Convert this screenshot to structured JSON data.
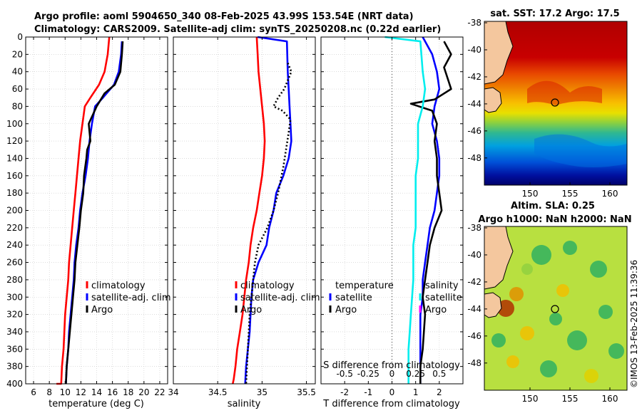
{
  "title": {
    "line1": "Argo profile: aoml 5904650_340 08-Feb-2025 43.99S 153.54E (NRT data)",
    "line2": "Climatology: CARS2009. Satellite-adj clim: synTS_20250208.nc (0.22d earlier)"
  },
  "copyright": "©IMOS 13-Feb-2025 11:39:36",
  "colors": {
    "climatology": "#ff0000",
    "satellite": "#0000ff",
    "argo": "#000000",
    "sat_s_diff": "#00eeee",
    "argo_s_diff": "#ff00ff",
    "land": "#f4c79e"
  },
  "legends": {
    "temp_panel": [
      "climatology",
      "satellite-adj. clim",
      "Argo"
    ],
    "sal_panel": [
      "climatology",
      "satellite-adj. clim",
      "Argo"
    ],
    "diff_left_header": "temperature",
    "diff_left": [
      "satellite",
      "Argo"
    ],
    "diff_right_header": "salinity",
    "diff_right": [
      "satellite",
      "Argo"
    ]
  },
  "map_sst": {
    "title": "sat. SST: 17.2 Argo: 17.5",
    "xticks": [
      "150",
      "155",
      "160"
    ],
    "yticks": [
      "-38",
      "-40",
      "-42",
      "-44",
      "-46",
      "-48"
    ]
  },
  "map_sla": {
    "title1": "Altim. SLA: 0.25",
    "title2": "Argo h1000: NaN h2000: NaN",
    "xticks": [
      "150",
      "155",
      "160"
    ],
    "yticks": [
      "-38",
      "-40",
      "-42",
      "-44",
      "-46",
      "-48"
    ]
  },
  "chart_data": [
    {
      "type": "line",
      "id": "temperature_profile",
      "xlabel": "temperature (deg C)",
      "ylabel": "",
      "xlim": [
        5,
        23
      ],
      "ylim": [
        0,
        400
      ],
      "xticks": [
        6,
        8,
        10,
        12,
        14,
        16,
        18,
        20,
        22
      ],
      "yticks": [
        0,
        20,
        40,
        60,
        80,
        100,
        120,
        140,
        160,
        180,
        200,
        220,
        240,
        260,
        280,
        300,
        320,
        340,
        360,
        380,
        400
      ],
      "y_reversed": true,
      "series": [
        {
          "name": "climatology",
          "color": "#ff0000",
          "x": [
            15.6,
            15.4,
            15.0,
            14.3,
            13.2,
            12.5,
            12.2,
            11.9,
            11.7,
            11.5,
            11.3,
            11.1,
            10.9,
            10.7,
            10.5,
            10.4,
            10.2,
            10.0,
            9.9,
            9.8,
            9.6,
            9.5,
            9.3,
            9.1,
            8.9
          ],
          "y": [
            0,
            20,
            40,
            55,
            70,
            80,
            100,
            120,
            140,
            160,
            180,
            200,
            220,
            240,
            260,
            280,
            300,
            320,
            340,
            360,
            380,
            400,
            400,
            400,
            400
          ]
        },
        {
          "name": "satellite-adj. clim",
          "color": "#0000ff",
          "x": [
            17.2,
            17.1,
            16.8,
            16.2,
            14.8,
            13.8,
            13.4,
            13.1,
            12.9,
            12.6,
            12.2,
            11.9,
            11.7,
            11.4,
            11.2,
            11.1,
            10.9,
            10.7,
            10.5,
            10.4,
            10.2,
            10.1
          ],
          "y": [
            5,
            20,
            40,
            55,
            70,
            80,
            100,
            120,
            140,
            160,
            180,
            200,
            220,
            240,
            260,
            280,
            300,
            320,
            340,
            360,
            380,
            400
          ]
        },
        {
          "name": "Argo",
          "color": "#000000",
          "x": [
            17.3,
            17.2,
            17.0,
            16.3,
            15.0,
            14.0,
            13.0,
            13.2,
            12.8,
            12.7,
            12.4,
            12.3,
            12.0,
            11.8,
            11.3,
            11.2,
            11.0,
            10.8,
            10.6,
            10.4,
            10.2,
            10.1
          ],
          "y": [
            5,
            20,
            40,
            55,
            65,
            80,
            100,
            120,
            130,
            140,
            160,
            180,
            200,
            220,
            260,
            280,
            300,
            320,
            340,
            360,
            380,
            400
          ]
        }
      ]
    },
    {
      "type": "line",
      "id": "salinity_profile",
      "xlabel": "salinity",
      "ylabel": "",
      "xlim": [
        34,
        35.6
      ],
      "ylim": [
        0,
        400
      ],
      "xticks": [
        34,
        34.5,
        35,
        35.5
      ],
      "y_reversed": true,
      "series": [
        {
          "name": "climatology",
          "color": "#ff0000",
          "x": [
            34.94,
            34.95,
            34.96,
            34.98,
            35.0,
            35.02,
            35.03,
            35.02,
            35.0,
            34.97,
            34.94,
            34.9,
            34.87,
            34.85,
            34.82,
            34.8,
            34.78,
            34.75,
            34.72,
            34.7,
            34.68,
            34.67
          ],
          "y": [
            0,
            20,
            40,
            60,
            80,
            100,
            120,
            140,
            160,
            180,
            200,
            220,
            240,
            260,
            280,
            300,
            320,
            340,
            360,
            380,
            395,
            400
          ]
        },
        {
          "name": "satellite-adj. clim",
          "color": "#0000ff",
          "x": [
            34.95,
            35.28,
            35.29,
            35.3,
            35.31,
            35.32,
            35.33,
            35.3,
            35.24,
            35.16,
            35.13,
            35.08,
            35.05,
            34.96,
            34.9,
            34.88,
            34.87,
            34.86,
            34.84,
            34.82,
            34.81
          ],
          "y": [
            0,
            5,
            40,
            60,
            80,
            100,
            120,
            140,
            160,
            180,
            200,
            220,
            240,
            260,
            280,
            300,
            320,
            340,
            360,
            380,
            400
          ]
        },
        {
          "name": "Argo",
          "color": "#000000",
          "dash": "dotted",
          "x": [
            35.29,
            35.33,
            35.29,
            35.25,
            35.18,
            35.13,
            35.23,
            35.32,
            35.3,
            35.24,
            35.18,
            35.13,
            35.06,
            34.96,
            34.92,
            34.9,
            34.88,
            34.86,
            34.84,
            34.82
          ],
          "y": [
            30,
            40,
            50,
            60,
            70,
            80,
            85,
            95,
            110,
            150,
            180,
            200,
            220,
            240,
            260,
            280,
            300,
            320,
            360,
            400
          ]
        }
      ]
    },
    {
      "type": "line",
      "id": "difference_profile",
      "xlabel": "T difference from climatology",
      "top_xlabel": "S difference from climatology",
      "xlim": [
        -3,
        3
      ],
      "ylim": [
        0,
        400
      ],
      "xticks": [
        -2,
        -1,
        0,
        1,
        2
      ],
      "top_xticks": [
        "-0.5",
        "-0.25",
        "0",
        "0.25",
        "0.5"
      ],
      "top_xtick_positions": [
        -2,
        -1,
        0,
        1,
        2
      ],
      "zero_line": 0,
      "y_reversed": true,
      "series": [
        {
          "name": "satellite T",
          "color": "#0000ff",
          "x": [
            1.3,
            1.7,
            1.9,
            2.0,
            1.8,
            1.7,
            1.9,
            2.0,
            2.0,
            1.9,
            1.8,
            1.6,
            1.5,
            1.4,
            1.3,
            1.3,
            1.2,
            1.2,
            1.2,
            1.2,
            1.2
          ],
          "y": [
            0,
            20,
            40,
            60,
            80,
            100,
            120,
            140,
            160,
            180,
            200,
            220,
            240,
            260,
            280,
            300,
            320,
            340,
            360,
            380,
            400
          ]
        },
        {
          "name": "Argo T",
          "color": "#000000",
          "x": [
            2.2,
            2.5,
            2.2,
            2.5,
            1.8,
            0.8,
            1.7,
            1.9,
            1.8,
            1.9,
            1.9,
            2.0,
            2.1,
            1.8,
            1.6,
            1.5,
            1.4,
            1.3,
            1.4,
            1.3,
            1.2,
            1.2
          ],
          "y": [
            5,
            20,
            35,
            60,
            72,
            77,
            85,
            100,
            120,
            140,
            160,
            180,
            200,
            220,
            240,
            260,
            280,
            300,
            320,
            360,
            380,
            400
          ]
        },
        {
          "name": "satellite S",
          "color": "#00eeee",
          "x": [
            -0.3,
            1.2,
            1.3,
            1.4,
            1.3,
            1.1,
            1.1,
            1.1,
            1.0,
            1.0,
            1.0,
            1.0,
            0.9,
            0.9,
            0.9,
            0.85,
            0.8,
            0.75,
            0.7,
            0.7,
            0.7
          ],
          "y": [
            0,
            5,
            40,
            60,
            80,
            100,
            120,
            140,
            160,
            180,
            200,
            220,
            240,
            260,
            280,
            300,
            320,
            340,
            360,
            380,
            400
          ]
        }
      ]
    }
  ]
}
